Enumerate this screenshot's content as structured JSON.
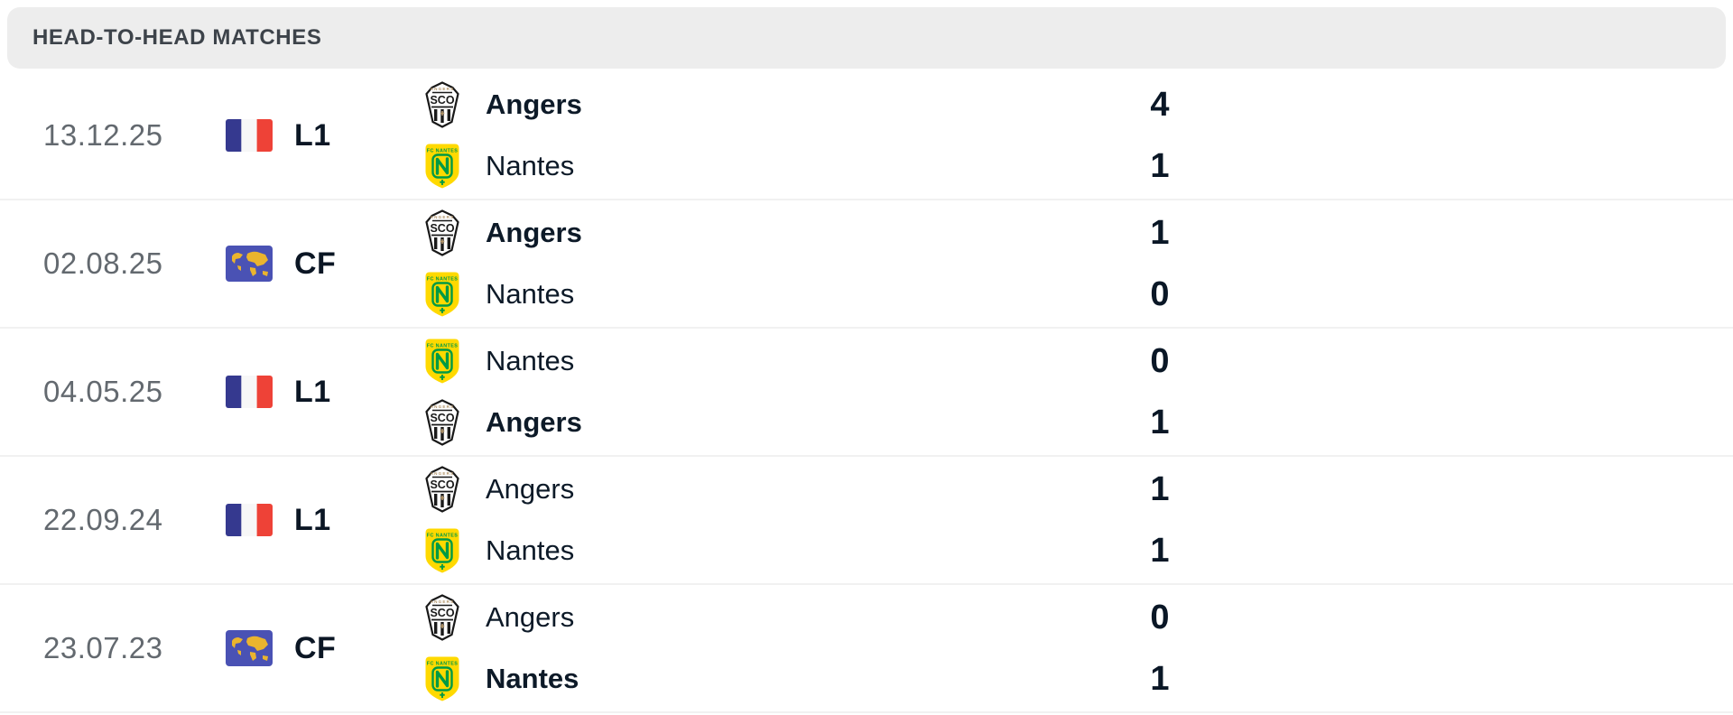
{
  "header": {
    "title": "HEAD-TO-HEAD MATCHES"
  },
  "colors": {
    "header_bg": "#ededed",
    "header_text": "#3d434a",
    "date_text": "#63696f",
    "dark_text": "#0d1a28",
    "divider": "#f1f1f1",
    "flag_blue": "#35398f",
    "flag_red": "#ee4237",
    "world_bg": "#4a52b4",
    "world_land": "#eab42e",
    "nantes_yellow": "#ffd900",
    "nantes_green": "#009a44",
    "sco_black": "#191919",
    "sco_tan": "#b2956a"
  },
  "icons": {
    "L1": "france-flag-icon",
    "CF": "world-map-icon"
  },
  "matches": [
    {
      "date": "13.12.25",
      "competition": "L1",
      "teams": [
        {
          "name": "Angers",
          "logo": "angers-sco-logo",
          "bold": true,
          "score": "4"
        },
        {
          "name": "Nantes",
          "logo": "nantes-logo",
          "bold": false,
          "score": "1"
        }
      ]
    },
    {
      "date": "02.08.25",
      "competition": "CF",
      "teams": [
        {
          "name": "Angers",
          "logo": "angers-sco-logo",
          "bold": true,
          "score": "1"
        },
        {
          "name": "Nantes",
          "logo": "nantes-logo",
          "bold": false,
          "score": "0"
        }
      ]
    },
    {
      "date": "04.05.25",
      "competition": "L1",
      "teams": [
        {
          "name": "Nantes",
          "logo": "nantes-logo",
          "bold": false,
          "score": "0"
        },
        {
          "name": "Angers",
          "logo": "angers-sco-logo",
          "bold": true,
          "score": "1"
        }
      ]
    },
    {
      "date": "22.09.24",
      "competition": "L1",
      "teams": [
        {
          "name": "Angers",
          "logo": "angers-sco-logo",
          "bold": false,
          "score": "1"
        },
        {
          "name": "Nantes",
          "logo": "nantes-logo",
          "bold": false,
          "score": "1"
        }
      ]
    },
    {
      "date": "23.07.23",
      "competition": "CF",
      "teams": [
        {
          "name": "Angers",
          "logo": "angers-sco-logo",
          "bold": false,
          "score": "0"
        },
        {
          "name": "Nantes",
          "logo": "nantes-logo",
          "bold": true,
          "score": "1"
        }
      ]
    }
  ]
}
